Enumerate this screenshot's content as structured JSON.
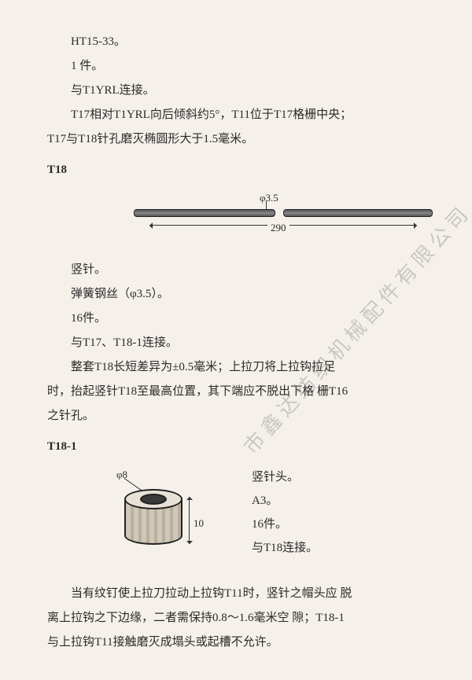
{
  "top": {
    "line1": "HT15-33。",
    "line2": "1 件。",
    "line3": "与T1YRL连接。",
    "line4": "T17相对T1YRL向后倾斜约5°，T11位于T17格栅中央；",
    "line5": "T17与T18针孔磨灭椭圆形大于1.5毫米。"
  },
  "t18": {
    "heading": "T18",
    "diagram": {
      "phi_label": "φ3.5",
      "length_label": "290",
      "rod_color_dark": "#555555",
      "rod_color_light": "#888888"
    },
    "lines": {
      "a": "竖针。",
      "b": "弹簧钢丝（φ3.5）。",
      "c": "16件。",
      "d": "与T17、T18-1连接。",
      "e": "整套T18长短差异为±0.5毫米；上拉刀将上拉钩拉足",
      "f": "时，抬起竖针T18至最高位置，其下端应不脱出下格 栅T16",
      "g": "之针孔。"
    }
  },
  "t18_1": {
    "heading": "T18-1",
    "diagram": {
      "phi_label": "φ8",
      "height_label": "10"
    },
    "side": {
      "a": "竖针头。",
      "b": "A3。",
      "c": "16件。",
      "d": "与T18连接。"
    }
  },
  "bottom": {
    "line1": "当有纹钉使上拉刀拉动上拉钩T11时，竖针之帽头应 脱",
    "line2": "离上拉钩之下边缘，二者需保持0.8～1.6毫米空 隙；T18-1",
    "line3": "与上拉钩T11接触磨灭成塌头或起槽不允许。"
  },
  "watermark": "市鑫达纺织机械配件有限公司",
  "colors": {
    "page_bg": "#f5f1ea",
    "text": "#2a2a2a",
    "line": "#333333"
  }
}
